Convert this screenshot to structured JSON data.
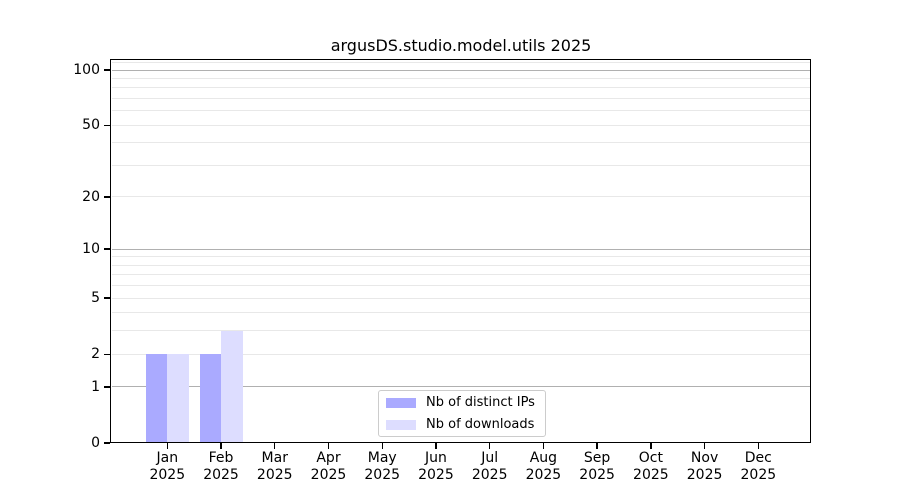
{
  "chart_data": {
    "type": "bar",
    "title": "argusDS.studio.model.utils 2025",
    "categories": [
      "Jan",
      "Feb",
      "Mar",
      "Apr",
      "May",
      "Jun",
      "Jul",
      "Aug",
      "Sep",
      "Oct",
      "Nov",
      "Dec"
    ],
    "category_year": "2025",
    "series": [
      {
        "name": "Nb of distinct IPs",
        "color": "#aaaaff",
        "values": [
          2,
          2,
          0,
          0,
          0,
          0,
          0,
          0,
          0,
          0,
          0,
          0
        ]
      },
      {
        "name": "Nb of downloads",
        "color": "#ddddff",
        "values": [
          2,
          3,
          0,
          0,
          0,
          0,
          0,
          0,
          0,
          0,
          0,
          0
        ]
      }
    ],
    "ylabel": "",
    "xlabel": "",
    "yscale": "log1p",
    "ylim": [
      0,
      115
    ],
    "y_major_ticks": [
      0,
      1,
      2,
      5,
      10,
      20,
      50,
      100
    ],
    "y_minor_gridlines": [
      3,
      4,
      6,
      7,
      8,
      9,
      30,
      40,
      60,
      70,
      80,
      90,
      110
    ],
    "y_emphasized_gridlines": [
      1,
      10,
      100
    ],
    "grid": "on",
    "legend_position": "bottom-center",
    "colors": {
      "major_grid": "#b0b0b0",
      "minor_grid": "#e8e8e8",
      "axis": "#000000",
      "background": "#ffffff"
    }
  }
}
